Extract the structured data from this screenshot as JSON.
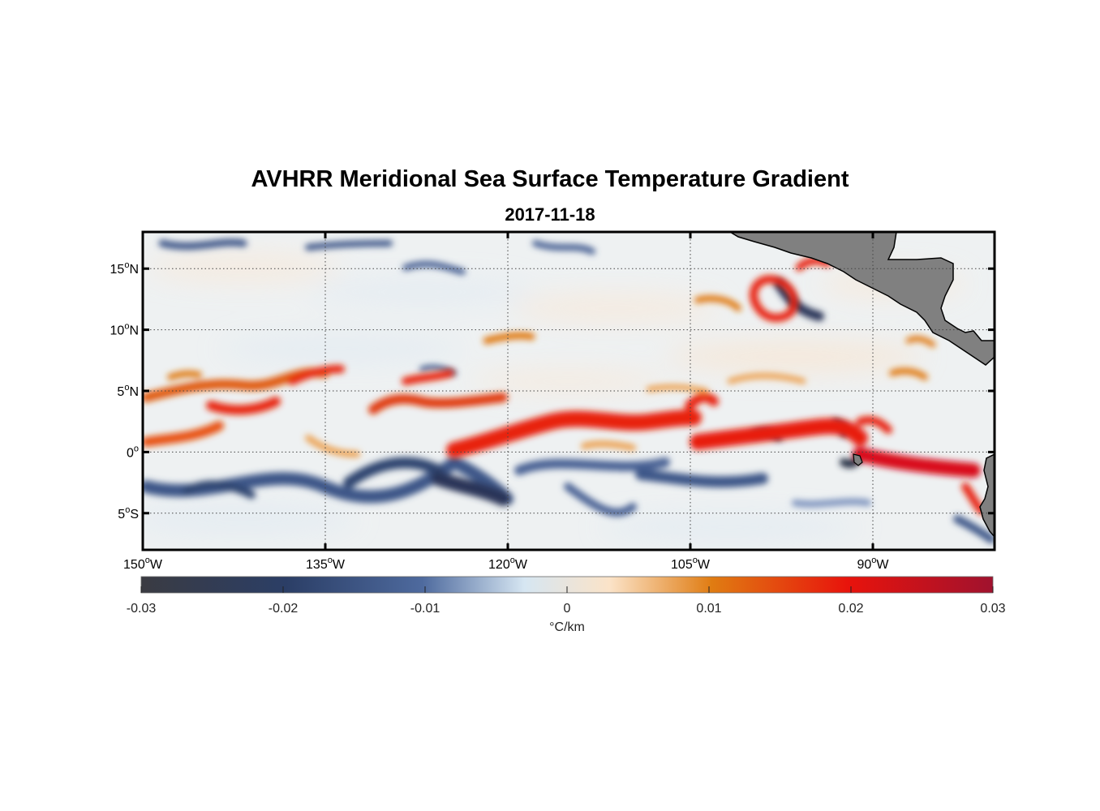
{
  "title": "AVHRR Meridional Sea Surface Temperature Gradient",
  "subtitle": "2017-11-18",
  "chart_data": {
    "type": "heatmap",
    "title": "AVHRR Meridional Sea Surface Temperature Gradient",
    "subtitle": "2017-11-18",
    "lon_range": [
      -150,
      -80
    ],
    "lat_range": [
      -8,
      18
    ],
    "lon_ticks": [
      {
        "value": -150,
        "deg": "150",
        "hemi": "W"
      },
      {
        "value": -135,
        "deg": "135",
        "hemi": "W"
      },
      {
        "value": -120,
        "deg": "120",
        "hemi": "W"
      },
      {
        "value": -105,
        "deg": "105",
        "hemi": "W"
      },
      {
        "value": -90,
        "deg": "90",
        "hemi": "W"
      }
    ],
    "lat_ticks": [
      {
        "value": 15,
        "deg": "15",
        "hemi": "N"
      },
      {
        "value": 10,
        "deg": "10",
        "hemi": "N"
      },
      {
        "value": 5,
        "deg": "5",
        "hemi": "N"
      },
      {
        "value": 0,
        "deg": "0",
        "hemi": ""
      },
      {
        "value": -5,
        "deg": "5",
        "hemi": "S"
      }
    ],
    "grid": true,
    "colorbar": {
      "min": -0.03,
      "max": 0.03,
      "ticks": [
        "-0.03",
        "-0.02",
        "-0.01",
        "0",
        "0.01",
        "0.02",
        "0.03"
      ],
      "label": "°C/km",
      "colors": [
        "#3a3b42",
        "#2b3e66",
        "#4e6a9e",
        "#d6e6f2",
        "#fbe3c8",
        "#e07c12",
        "#e8130c",
        "#a0122e"
      ]
    },
    "features": [
      {
        "name": "equatorial-warm-front-band",
        "sign": "positive",
        "lat_approx": 1,
        "lon_span": [
          -124,
          -82
        ]
      },
      {
        "name": "equatorial-cold-band",
        "sign": "negative",
        "lat_approx": -3,
        "lon_span": [
          -150,
          -95
        ]
      },
      {
        "name": "western-warm-band",
        "sign": "positive",
        "lat_approx": 4,
        "lon_span": [
          -150,
          -125
        ]
      },
      {
        "name": "gulf-of-tehuantepec-eddy",
        "sign": "mixed",
        "lat_approx": 13,
        "lon_approx": -96
      }
    ],
    "land_color": "#808080"
  }
}
